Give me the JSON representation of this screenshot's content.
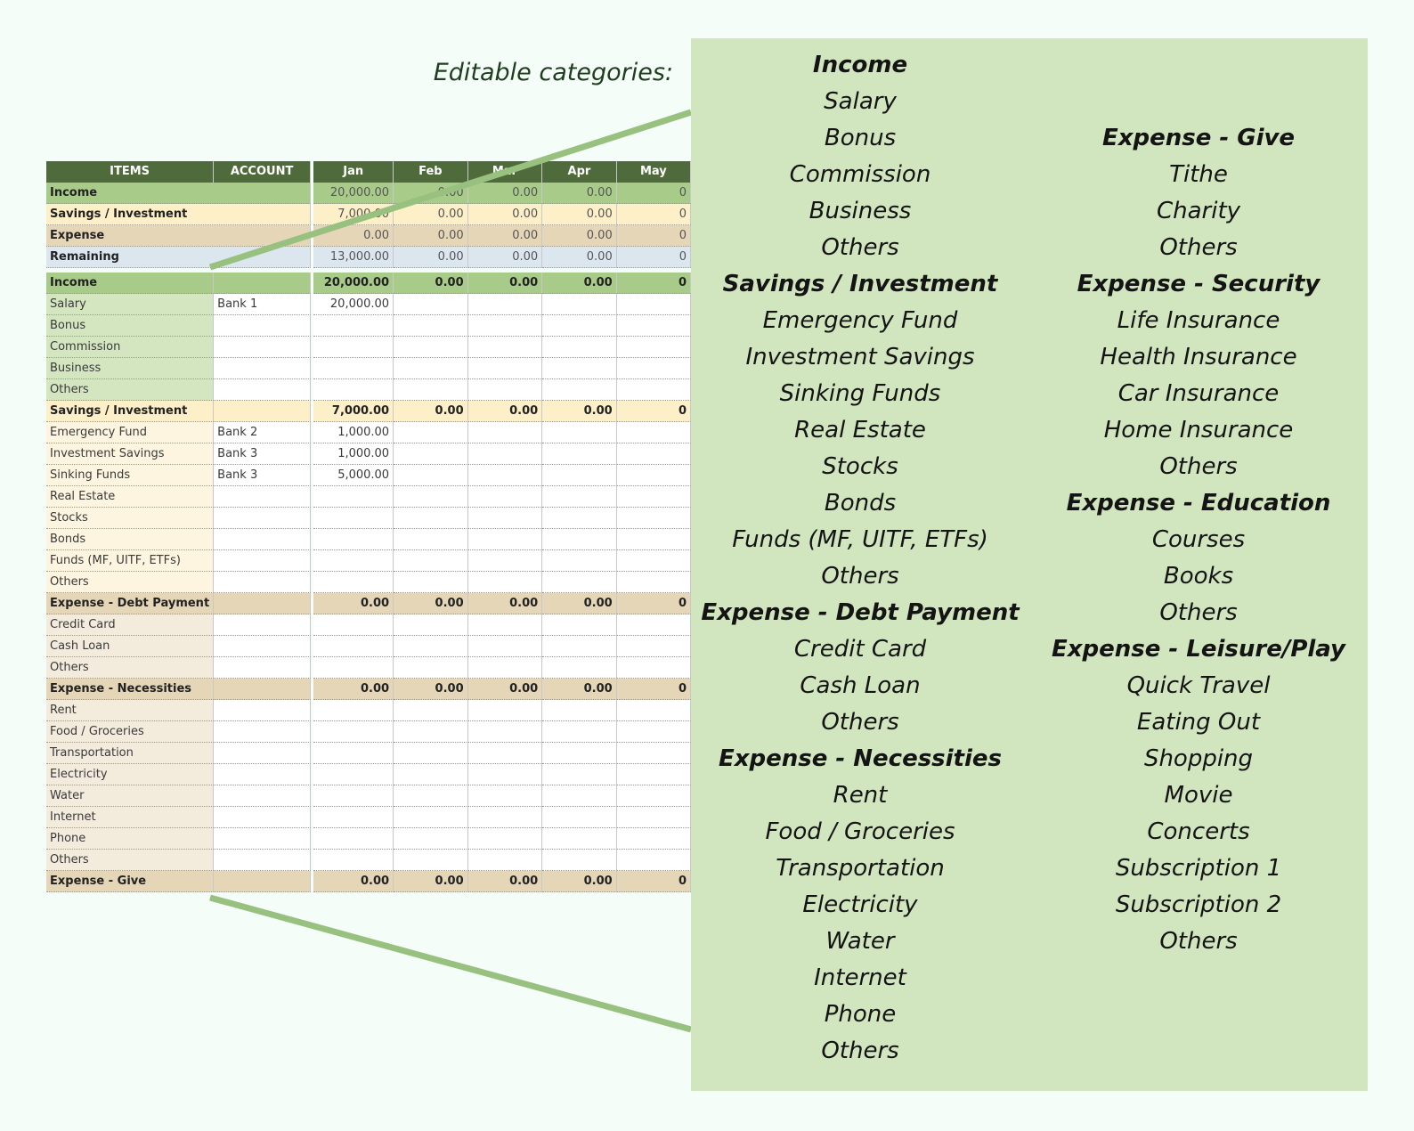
{
  "caption": "Editable categories:",
  "columns": {
    "items": "ITEMS",
    "account": "ACCOUNT",
    "months": [
      "Jan",
      "Feb",
      "Mar",
      "Apr",
      "May"
    ]
  },
  "summary": [
    {
      "label": "Income",
      "values": [
        "20,000.00",
        "0.00",
        "0.00",
        "0.00",
        "0"
      ],
      "style": "inc"
    },
    {
      "label": "Savings / Investment",
      "values": [
        "7,000.00",
        "0.00",
        "0.00",
        "0.00",
        "0"
      ],
      "style": "sav"
    },
    {
      "label": "Expense",
      "values": [
        "0.00",
        "0.00",
        "0.00",
        "0.00",
        "0"
      ],
      "style": "exp"
    },
    {
      "label": "Remaining",
      "values": [
        "13,000.00",
        "0.00",
        "0.00",
        "0.00",
        "0"
      ],
      "style": "rem"
    }
  ],
  "sections": [
    {
      "label": "Income",
      "style": "inc",
      "totals": [
        "20,000.00",
        "0.00",
        "0.00",
        "0.00",
        "0"
      ],
      "items": [
        {
          "name": "Salary",
          "account": "Bank 1",
          "jan": "20,000.00"
        },
        {
          "name": "Bonus",
          "account": "",
          "jan": ""
        },
        {
          "name": "Commission",
          "account": "",
          "jan": ""
        },
        {
          "name": "Business",
          "account": "",
          "jan": ""
        },
        {
          "name": "Others",
          "account": "",
          "jan": ""
        }
      ]
    },
    {
      "label": "Savings / Investment",
      "style": "sav",
      "totals": [
        "7,000.00",
        "0.00",
        "0.00",
        "0.00",
        "0"
      ],
      "items": [
        {
          "name": "Emergency Fund",
          "account": "Bank 2",
          "jan": "1,000.00"
        },
        {
          "name": "Investment Savings",
          "account": "Bank 3",
          "jan": "1,000.00"
        },
        {
          "name": "Sinking Funds",
          "account": "Bank 3",
          "jan": "5,000.00"
        },
        {
          "name": "Real Estate",
          "account": "",
          "jan": ""
        },
        {
          "name": "Stocks",
          "account": "",
          "jan": ""
        },
        {
          "name": "Bonds",
          "account": "",
          "jan": ""
        },
        {
          "name": "Funds (MF, UITF, ETFs)",
          "account": "",
          "jan": ""
        },
        {
          "name": "Others",
          "account": "",
          "jan": ""
        }
      ]
    },
    {
      "label": "Expense - Debt Payment",
      "style": "exp",
      "totals": [
        "0.00",
        "0.00",
        "0.00",
        "0.00",
        "0"
      ],
      "items": [
        {
          "name": "Credit Card",
          "account": "",
          "jan": ""
        },
        {
          "name": "Cash Loan",
          "account": "",
          "jan": ""
        },
        {
          "name": "Others",
          "account": "",
          "jan": ""
        }
      ]
    },
    {
      "label": "Expense - Necessities",
      "style": "exp",
      "totals": [
        "0.00",
        "0.00",
        "0.00",
        "0.00",
        "0"
      ],
      "items": [
        {
          "name": "Rent",
          "account": "",
          "jan": ""
        },
        {
          "name": "Food / Groceries",
          "account": "",
          "jan": ""
        },
        {
          "name": "Transportation",
          "account": "",
          "jan": ""
        },
        {
          "name": "Electricity",
          "account": "",
          "jan": ""
        },
        {
          "name": "Water",
          "account": "",
          "jan": ""
        },
        {
          "name": "Internet",
          "account": "",
          "jan": ""
        },
        {
          "name": "Phone",
          "account": "",
          "jan": ""
        },
        {
          "name": "Others",
          "account": "",
          "jan": ""
        }
      ]
    },
    {
      "label": "Expense - Give",
      "style": "exp",
      "totals": [
        "0.00",
        "0.00",
        "0.00",
        "0.00",
        "0"
      ],
      "items": []
    }
  ],
  "categories_left": [
    {
      "text": "Income",
      "heading": true
    },
    {
      "text": "Salary"
    },
    {
      "text": "Bonus"
    },
    {
      "text": "Commission"
    },
    {
      "text": "Business"
    },
    {
      "text": "Others"
    },
    {
      "text": "Savings / Investment",
      "heading": true
    },
    {
      "text": "Emergency Fund"
    },
    {
      "text": "Investment Savings"
    },
    {
      "text": "Sinking Funds"
    },
    {
      "text": "Real Estate"
    },
    {
      "text": "Stocks"
    },
    {
      "text": "Bonds"
    },
    {
      "text": "Funds (MF, UITF, ETFs)"
    },
    {
      "text": "Others"
    },
    {
      "text": "Expense - Debt Payment",
      "heading": true
    },
    {
      "text": "Credit Card"
    },
    {
      "text": "Cash Loan"
    },
    {
      "text": "Others"
    },
    {
      "text": "Expense - Necessities",
      "heading": true
    },
    {
      "text": "Rent"
    },
    {
      "text": "Food / Groceries"
    },
    {
      "text": "Transportation"
    },
    {
      "text": "Electricity"
    },
    {
      "text": "Water"
    },
    {
      "text": "Internet"
    },
    {
      "text": "Phone"
    },
    {
      "text": "Others"
    }
  ],
  "categories_right": [
    {
      "text": "",
      "heading": false
    },
    {
      "text": "",
      "heading": false
    },
    {
      "text": "Expense - Give",
      "heading": true
    },
    {
      "text": "Tithe"
    },
    {
      "text": "Charity"
    },
    {
      "text": "Others"
    },
    {
      "text": "Expense - Security",
      "heading": true
    },
    {
      "text": "Life Insurance"
    },
    {
      "text": "Health Insurance"
    },
    {
      "text": "Car Insurance"
    },
    {
      "text": "Home Insurance"
    },
    {
      "text": "Others"
    },
    {
      "text": "Expense - Education",
      "heading": true
    },
    {
      "text": "Courses"
    },
    {
      "text": "Books"
    },
    {
      "text": "Others"
    },
    {
      "text": "Expense - Leisure/Play",
      "heading": true
    },
    {
      "text": "Quick Travel"
    },
    {
      "text": "Eating Out"
    },
    {
      "text": "Shopping"
    },
    {
      "text": "Movie"
    },
    {
      "text": "Concerts"
    },
    {
      "text": "Subscription 1"
    },
    {
      "text": "Subscription 2"
    },
    {
      "text": "Others"
    }
  ],
  "colors": {
    "header": "#4f6b3b",
    "income": "#a9cb8a",
    "savings": "#fdefc8",
    "expense": "#e6d6b8",
    "remaining": "#dbe6ef",
    "panel": "#d1e5bf",
    "connector": "#98c07e"
  }
}
